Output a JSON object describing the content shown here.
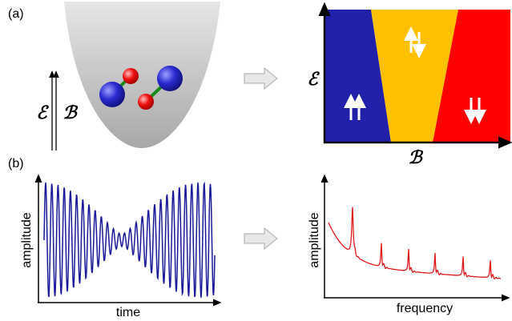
{
  "panel_a": {
    "label": "(a)",
    "trap": {
      "field_labels": [
        "ℰ",
        "ℬ"
      ]
    },
    "phase_diagram": {
      "y_label": "ℰ",
      "x_label": "ℬ"
    }
  },
  "panel_b": {
    "label": "(b)",
    "time_signal": {
      "y_label": "amplitude",
      "x_label": "time"
    },
    "spectrum": {
      "y_label": "amplitude",
      "x_label": "frequency"
    }
  }
}
